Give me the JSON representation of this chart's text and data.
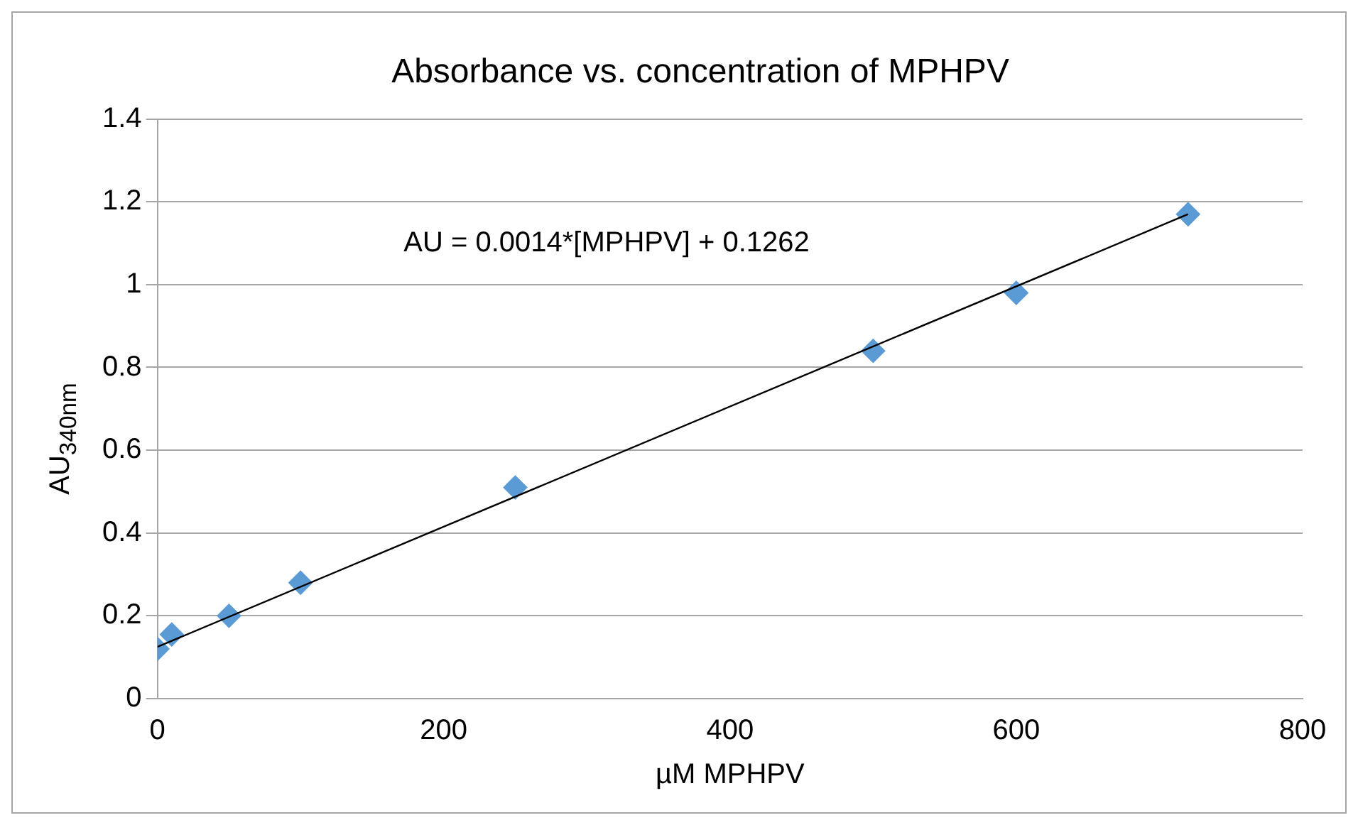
{
  "chart_data": {
    "type": "scatter",
    "title": "Absorbance vs. concentration of MPHPV",
    "xlabel": "µM MPHPV",
    "ylabel": "AU$_{340nm}$",
    "series": [
      {
        "color": "#5b9bd5",
        "marker": "diamond",
        "x": [
          0,
          10,
          50,
          100,
          250,
          500,
          600,
          720
        ],
        "values": [
          0.12,
          0.155,
          0.2,
          0.28,
          0.51,
          0.84,
          0.98,
          1.17
        ]
      },
      {
        "type": "line",
        "color": "#000000",
        "marker": "none",
        "x": [
          0,
          720
        ],
        "values": [
          0.125,
          1.17
        ]
      }
    ],
    "xlim": [
      0,
      800
    ],
    "xticks": [
      0,
      200,
      400,
      600,
      800
    ],
    "ylim": [
      0,
      1.4
    ],
    "yticks": [
      0,
      0.2,
      0.4,
      0.6,
      0.8,
      1,
      1.2,
      1.4
    ],
    "grid": "y",
    "legend": false,
    "annotations": [
      "AU = 0.0014*[MPHPV] + 0.1262"
    ]
  }
}
